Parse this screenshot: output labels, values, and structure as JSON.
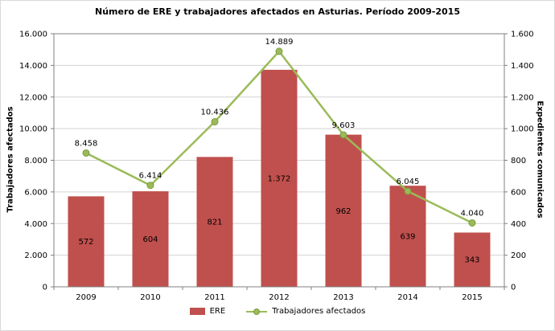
{
  "title": "Número de ERE y trabajadores afectados en Asturias. Período 2009-2015",
  "chart_data": {
    "type": "bar",
    "title": "Número de ERE y trabajadores afectados en Asturias. Período 2009-2015",
    "categories": [
      "2009",
      "2010",
      "2011",
      "2012",
      "2013",
      "2014",
      "2015"
    ],
    "series": [
      {
        "name": "ERE",
        "type": "bar",
        "axis": "right",
        "color": "#C0504D",
        "values": [
          572,
          604,
          821,
          1372,
          962,
          639,
          343
        ],
        "labels": [
          "572",
          "604",
          "821",
          "1.372",
          "962",
          "639",
          "343"
        ]
      },
      {
        "name": "Trabajadores afectados",
        "type": "line",
        "axis": "left",
        "color": "#9BBB59",
        "marker_stroke": "#7A9A3D",
        "values": [
          8458,
          6414,
          10436,
          14889,
          9603,
          6045,
          4040
        ],
        "labels": [
          "8.458",
          "6.414",
          "10.436",
          "14.889",
          "9.603",
          "6.045",
          "4.040"
        ]
      }
    ],
    "left_axis": {
      "title": "Trabajadores afectados",
      "min": 0,
      "max": 16000,
      "step": 2000,
      "tick_labels": [
        "0",
        "2.000",
        "4.000",
        "6.000",
        "8.000",
        "10.000",
        "12.000",
        "14.000",
        "16.000"
      ]
    },
    "right_axis": {
      "title": "Expedientes comunicados",
      "min": 0,
      "max": 1600,
      "step": 200,
      "tick_labels": [
        "0",
        "200",
        "400",
        "600",
        "800",
        "1.000",
        "1.200",
        "1.400",
        "1.600"
      ]
    },
    "grid": true,
    "legend_position": "bottom",
    "gridline_color": "#d3d3d3",
    "axis_color": "#808080"
  }
}
